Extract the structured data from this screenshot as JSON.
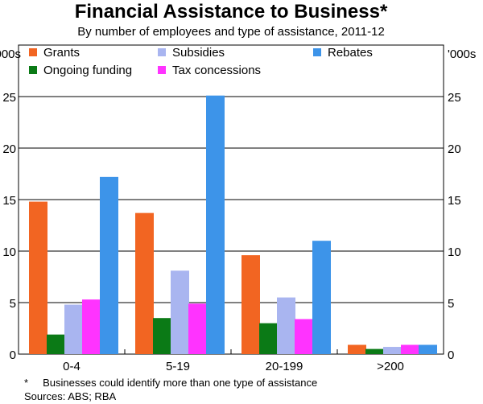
{
  "chart_data": {
    "type": "bar",
    "title": "Financial Assistance to Business*",
    "subtitle": "By number of employees and type of assistance, 2011-12",
    "ylabel_left": "'000s",
    "ylabel_right": "'000s",
    "ylim": [
      0,
      30
    ],
    "yticks": [
      0,
      5,
      10,
      15,
      20,
      25
    ],
    "categories": [
      "0-4",
      "5-19",
      "20-199",
      ">200"
    ],
    "series": [
      {
        "name": "Grants",
        "color": "#f26522",
        "values": [
          14.8,
          13.7,
          9.6,
          0.9
        ]
      },
      {
        "name": "Ongoing funding",
        "color": "#0b7a16",
        "values": [
          1.9,
          3.5,
          3.0,
          0.5
        ]
      },
      {
        "name": "Subsidies",
        "color": "#a9b5f0",
        "values": [
          4.8,
          8.1,
          5.5,
          0.7
        ]
      },
      {
        "name": "Tax concessions",
        "color": "#ff33ff",
        "values": [
          5.3,
          4.9,
          3.4,
          0.9
        ]
      },
      {
        "name": "Rebates",
        "color": "#3d94e9",
        "values": [
          17.2,
          25.1,
          11.0,
          0.9
        ]
      }
    ],
    "legend": [
      [
        "Grants",
        "Subsidies",
        "Rebates"
      ],
      [
        "Ongoing funding",
        "Tax concessions"
      ]
    ],
    "legend_position": "top",
    "grid": true,
    "footnote": "*     Businesses could identify more than one type of assistance",
    "sources": "Sources: ABS; RBA"
  }
}
